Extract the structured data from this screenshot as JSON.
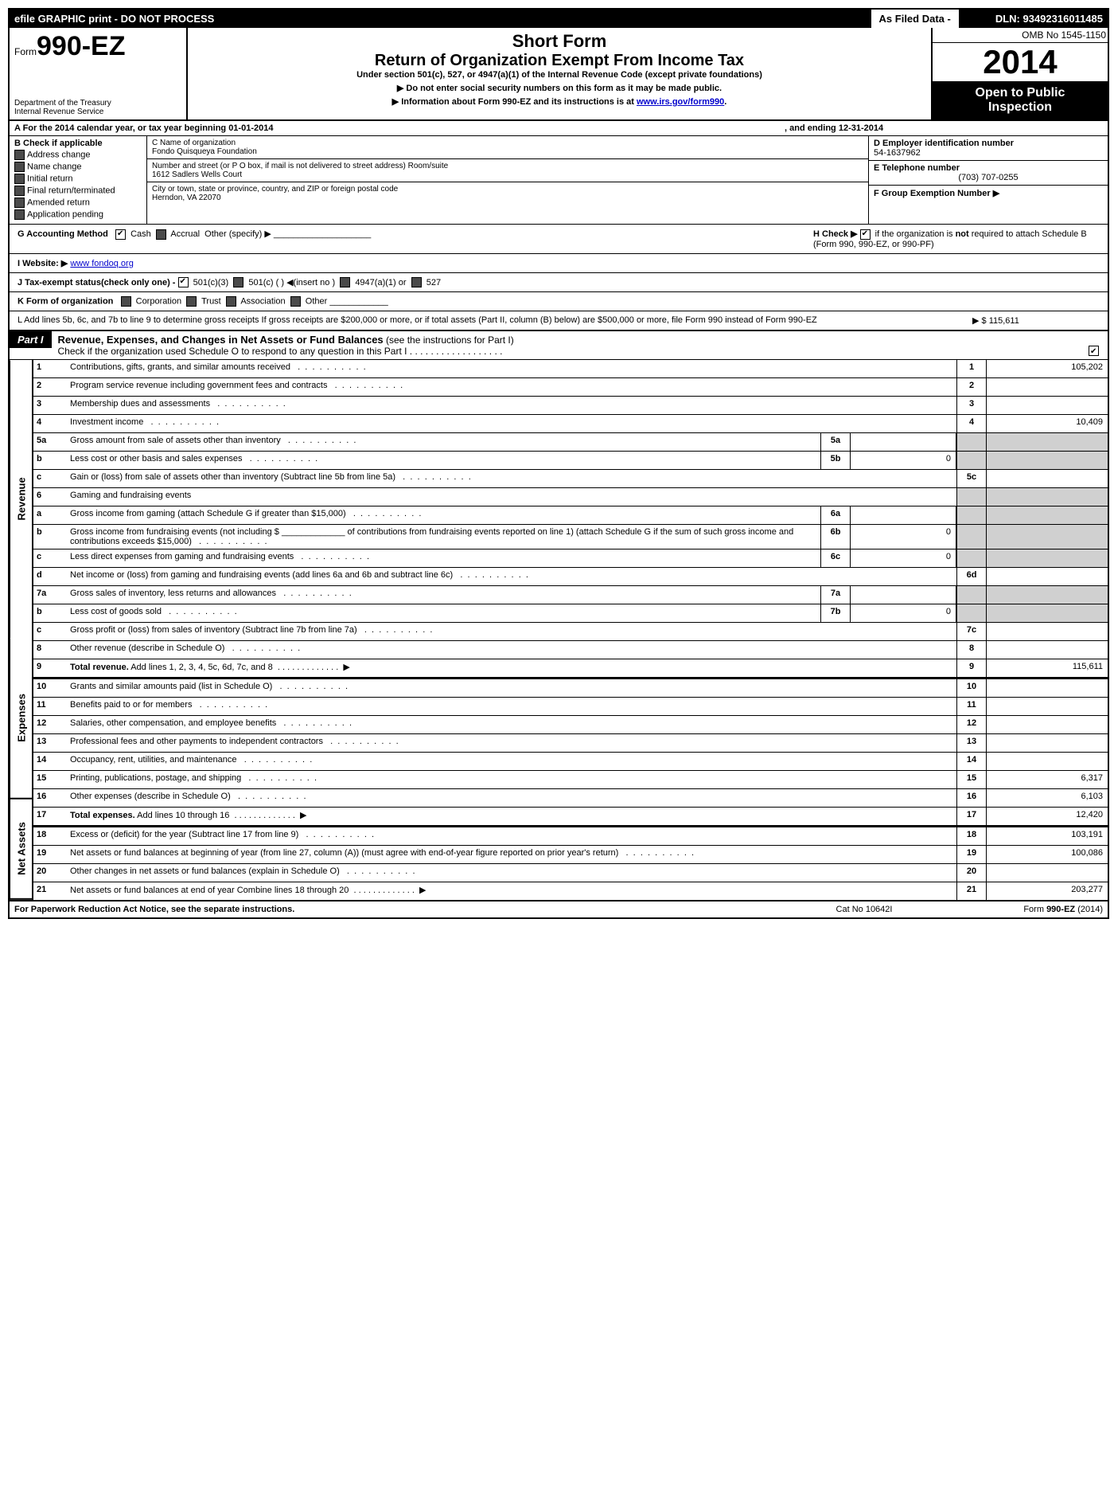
{
  "top": {
    "efile": "efile GRAPHIC print - DO NOT PROCESS",
    "asfiled": "As Filed Data -",
    "dln": "DLN: 93492316011485"
  },
  "header": {
    "form_prefix": "Form",
    "form_number": "990-EZ",
    "dept1": "Department of the Treasury",
    "dept2": "Internal Revenue Service",
    "short_form": "Short Form",
    "title": "Return of Organization Exempt From Income Tax",
    "under": "Under section 501(c), 527, or 4947(a)(1) of the Internal Revenue Code (except private foundations)",
    "notice1": "▶ Do not enter social security numbers on this form as it may be made public.",
    "notice2_pre": "▶ Information about Form 990-EZ and its instructions is at ",
    "notice2_link": "www.irs.gov/form990",
    "omb": "OMB No  1545-1150",
    "year": "2014",
    "open1": "Open to Public",
    "open2": "Inspection"
  },
  "rowA": {
    "label": "A  For the 2014 calendar year, or tax year beginning 01-01-2014",
    "ending": ", and ending 12-31-2014"
  },
  "B": {
    "title": "B  Check if applicable",
    "o1": "Address change",
    "o2": "Name change",
    "o3": "Initial return",
    "o4": "Final return/terminated",
    "o5": "Amended return",
    "o6": "Application pending"
  },
  "C": {
    "name_label": "C Name of organization",
    "name": "Fondo Quisqueya Foundation",
    "street_label": "Number and street (or P  O  box, if mail is not delivered to street address) Room/suite",
    "street": "1612 Sadlers Wells Court",
    "city_label": "City or town, state or province, country, and ZIP or foreign postal code",
    "city": "Herndon, VA  22070"
  },
  "D": {
    "label": "D Employer identification number",
    "value": "54-1637962"
  },
  "E": {
    "label": "E Telephone number",
    "value": "(703) 707-0255"
  },
  "F": {
    "label": "F Group Exemption Number   ▶"
  },
  "G": {
    "label": "G Accounting Method",
    "cash": "Cash",
    "accrual": "Accrual",
    "other": "Other (specify) ▶"
  },
  "H": {
    "text": "H  Check ▶",
    "rest": "if the organization is not required to attach Schedule B (Form 990, 990-EZ, or 990-PF)"
  },
  "I": {
    "label": "I Website: ▶",
    "value": "www fondoq org"
  },
  "J": {
    "label": "J Tax-exempt status(check only one) -",
    "o1": "501(c)(3)",
    "o2": "501(c) (   ) ◀(insert no )",
    "o3": "4947(a)(1) or",
    "o4": "527"
  },
  "K": {
    "label": "K Form of organization",
    "o1": "Corporation",
    "o2": "Trust",
    "o3": "Association",
    "o4": "Other"
  },
  "L": {
    "text": "L Add lines 5b, 6c, and 7b to line 9 to determine gross receipts  If gross receipts are $200,000 or more, or if total assets (Part II, column (B) below) are $500,000 or more, file Form 990 instead of Form 990-EZ",
    "amount": "▶ $ 115,611"
  },
  "part1": {
    "label": "Part I",
    "title": "Revenue, Expenses, and Changes in Net Assets or Fund Balances",
    "instr": "(see the instructions for Part I)",
    "check": "Check if the organization used Schedule O to respond to any question in this Part I  .  .  .  .  .  .  .  .  .  .  .  .  .  .  .  .  .  ."
  },
  "sections": {
    "revenue": "Revenue",
    "expenses": "Expenses",
    "netassets": "Net Assets"
  },
  "lines": {
    "1": {
      "n": "1",
      "d": "Contributions, gifts, grants, and similar amounts received",
      "rn": "1",
      "rv": "105,202"
    },
    "2": {
      "n": "2",
      "d": "Program service revenue including government fees and contracts",
      "rn": "2",
      "rv": ""
    },
    "3": {
      "n": "3",
      "d": "Membership dues and assessments",
      "rn": "3",
      "rv": ""
    },
    "4": {
      "n": "4",
      "d": "Investment income",
      "rn": "4",
      "rv": "10,409"
    },
    "5a": {
      "n": "5a",
      "d": "Gross amount from sale of assets other than inventory",
      "in": "5a",
      "iv": ""
    },
    "5b": {
      "n": "b",
      "d": "Less  cost or other basis and sales expenses",
      "in": "5b",
      "iv": "0"
    },
    "5c": {
      "n": "c",
      "d": "Gain or (loss) from sale of assets other than inventory (Subtract line 5b from line 5a)",
      "rn": "5c",
      "rv": ""
    },
    "6": {
      "n": "6",
      "d": "Gaming and fundraising events"
    },
    "6a": {
      "n": "a",
      "d": "Gross income from gaming (attach Schedule G if greater than $15,000)",
      "in": "6a",
      "iv": ""
    },
    "6b": {
      "n": "b",
      "d": "Gross income from fundraising events (not including $ _____________ of contributions from fundraising events reported on line 1) (attach Schedule G if the sum of such gross income and contributions exceeds $15,000)",
      "in": "6b",
      "iv": "0"
    },
    "6c": {
      "n": "c",
      "d": "Less  direct expenses from gaming and fundraising events",
      "in": "6c",
      "iv": "0"
    },
    "6d": {
      "n": "d",
      "d": "Net income or (loss) from gaming and fundraising events (add lines 6a and 6b and subtract line 6c)",
      "rn": "6d",
      "rv": ""
    },
    "7a": {
      "n": "7a",
      "d": "Gross sales of inventory, less returns and allowances",
      "in": "7a",
      "iv": ""
    },
    "7b": {
      "n": "b",
      "d": "Less  cost of goods sold",
      "in": "7b",
      "iv": "0"
    },
    "7c": {
      "n": "c",
      "d": "Gross profit or (loss) from sales of inventory (Subtract line 7b from line 7a)",
      "rn": "7c",
      "rv": ""
    },
    "8": {
      "n": "8",
      "d": "Other revenue (describe in Schedule O)",
      "rn": "8",
      "rv": ""
    },
    "9": {
      "n": "9",
      "d": "Total revenue. Add lines 1, 2, 3, 4, 5c, 6d, 7c, and 8",
      "rn": "9",
      "rv": "115,611",
      "bold": true,
      "arrow": true
    },
    "10": {
      "n": "10",
      "d": "Grants and similar amounts paid (list in Schedule O)",
      "rn": "10",
      "rv": ""
    },
    "11": {
      "n": "11",
      "d": "Benefits paid to or for members",
      "rn": "11",
      "rv": ""
    },
    "12": {
      "n": "12",
      "d": "Salaries, other compensation, and employee benefits",
      "rn": "12",
      "rv": ""
    },
    "13": {
      "n": "13",
      "d": "Professional fees and other payments to independent contractors",
      "rn": "13",
      "rv": ""
    },
    "14": {
      "n": "14",
      "d": "Occupancy, rent, utilities, and maintenance",
      "rn": "14",
      "rv": ""
    },
    "15": {
      "n": "15",
      "d": "Printing, publications, postage, and shipping",
      "rn": "15",
      "rv": "6,317"
    },
    "16": {
      "n": "16",
      "d": "Other expenses (describe in Schedule O)",
      "rn": "16",
      "rv": "6,103"
    },
    "17": {
      "n": "17",
      "d": "Total expenses. Add lines 10 through 16",
      "rn": "17",
      "rv": "12,420",
      "bold": true,
      "arrow": true
    },
    "18": {
      "n": "18",
      "d": "Excess or (deficit) for the year (Subtract line 17 from line 9)",
      "rn": "18",
      "rv": "103,191"
    },
    "19": {
      "n": "19",
      "d": "Net assets or fund balances at beginning of year (from line 27, column (A)) (must agree with end-of-year figure reported on prior year's return)",
      "rn": "19",
      "rv": "100,086"
    },
    "20": {
      "n": "20",
      "d": "Other changes in net assets or fund balances (explain in Schedule O)",
      "rn": "20",
      "rv": ""
    },
    "21": {
      "n": "21",
      "d": "Net assets or fund balances at end of year  Combine lines 18 through 20",
      "rn": "21",
      "rv": "203,277",
      "arrow": true
    }
  },
  "footer": {
    "left": "For Paperwork Reduction Act Notice, see the separate instructions.",
    "mid": "Cat  No  10642I",
    "right": "Form 990-EZ (2014)"
  }
}
